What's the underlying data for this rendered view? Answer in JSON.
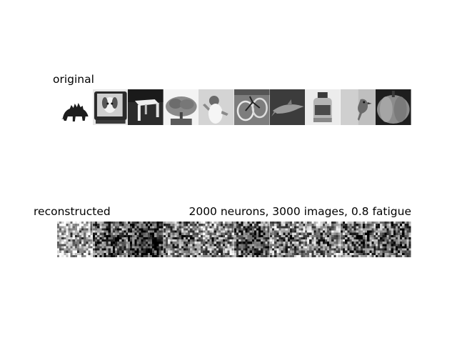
{
  "figure": {
    "original_title": "original",
    "reconstructed_title": "reconstructed",
    "parameters_text": "2000 neurons, 3000 images, 0.8 fatigue"
  },
  "original_tiles": [
    {
      "subject": "stegosaurus"
    },
    {
      "subject": "television with dog"
    },
    {
      "subject": "stool"
    },
    {
      "subject": "bonsai tree"
    },
    {
      "subject": "person"
    },
    {
      "subject": "bicycle"
    },
    {
      "subject": "dolphin"
    },
    {
      "subject": "jar"
    },
    {
      "subject": "bird"
    },
    {
      "subject": "pumpkin"
    }
  ],
  "reconstructed_tiles": [
    {
      "index": 1
    },
    {
      "index": 2
    },
    {
      "index": 3
    },
    {
      "index": 4
    },
    {
      "index": 5
    },
    {
      "index": 6
    },
    {
      "index": 7
    },
    {
      "index": 8
    },
    {
      "index": 9
    },
    {
      "index": 10
    }
  ],
  "colors": {
    "background": "#ffffff",
    "text": "#000000"
  }
}
